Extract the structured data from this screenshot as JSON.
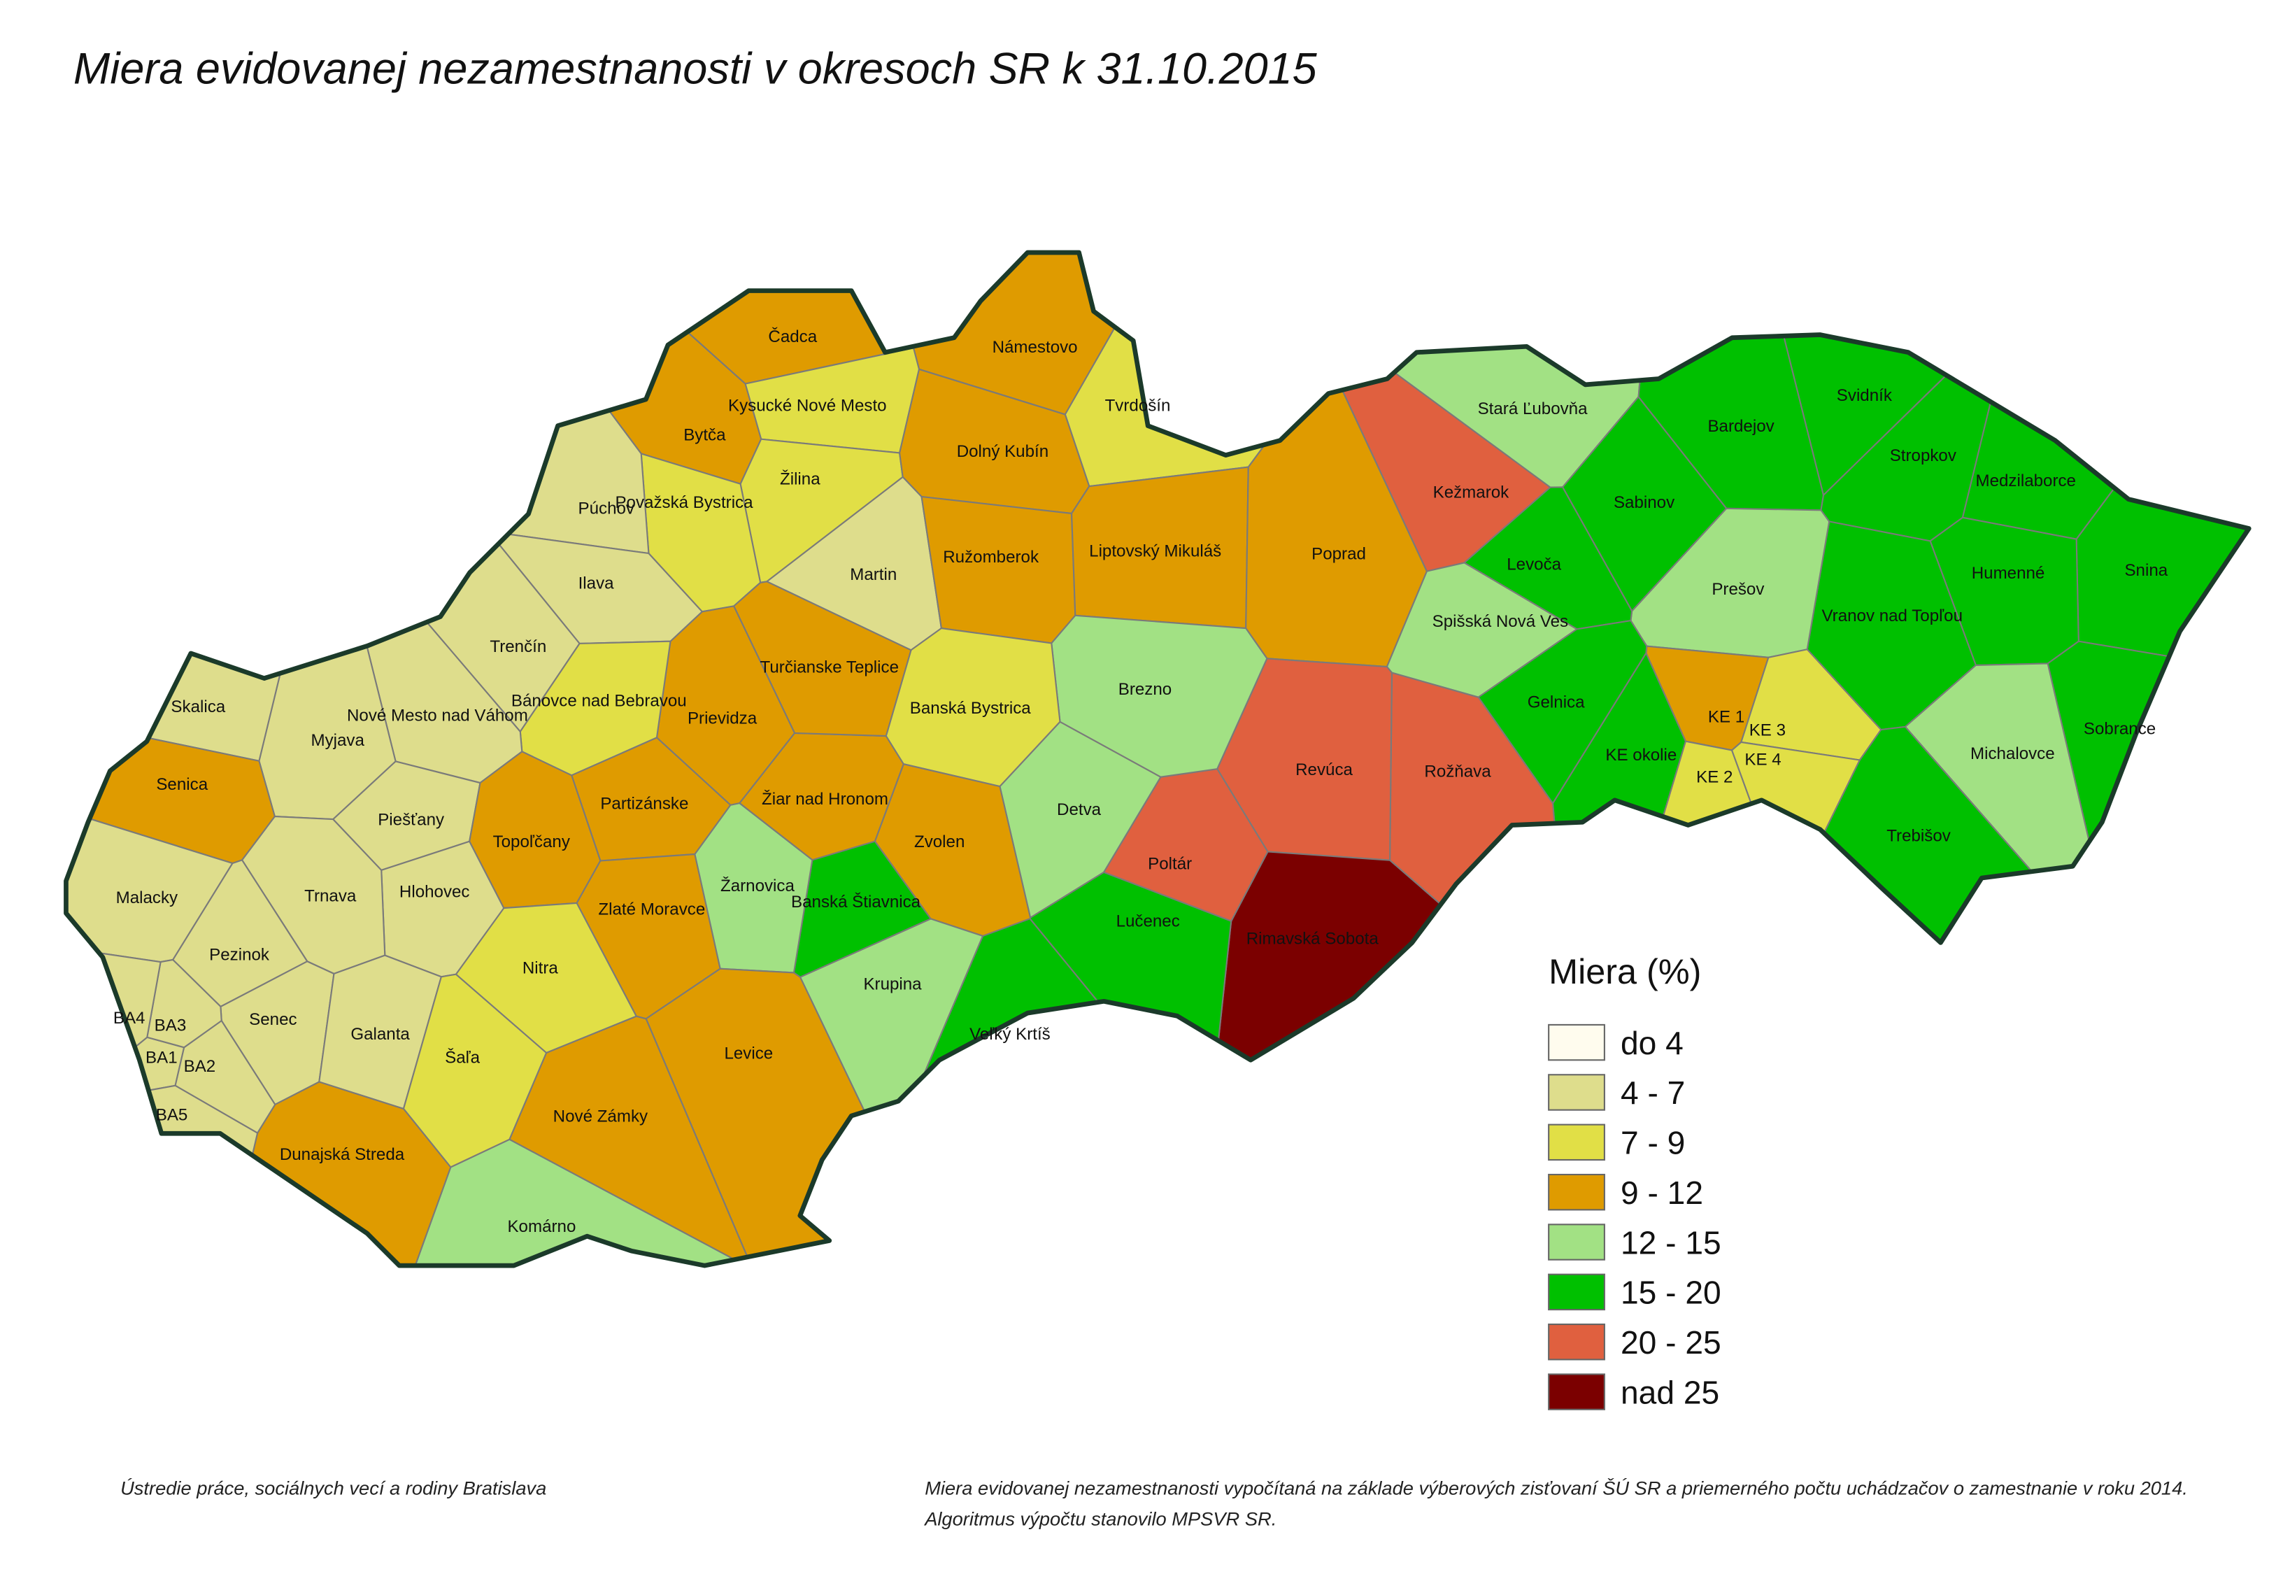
{
  "title": "Miera evidovanej nezamestnanosti v okresoch SR k 31.10.2015",
  "districts": [
    {
      "name": "Čadca",
      "category": "9 - 12"
    },
    {
      "name": "Námestovo",
      "category": "9 - 12"
    },
    {
      "name": "Tvrdošín",
      "category": "7 - 9"
    },
    {
      "name": "Kysucké Nové Mesto",
      "category": "7 - 9"
    },
    {
      "name": "Bytča",
      "category": "9 - 12"
    },
    {
      "name": "Žilina",
      "category": "7 - 9"
    },
    {
      "name": "Dolný Kubín",
      "category": "9 - 12"
    },
    {
      "name": "Považská Bystrica",
      "category": "7 - 9"
    },
    {
      "name": "Púchov",
      "category": "4 - 7"
    },
    {
      "name": "Martin",
      "category": "4 - 7"
    },
    {
      "name": "Ružomberok",
      "category": "9 - 12"
    },
    {
      "name": "Liptovský Mikuláš",
      "category": "9 - 12"
    },
    {
      "name": "Poprad",
      "category": "9 - 12"
    },
    {
      "name": "Kežmarok",
      "category": "20 - 25"
    },
    {
      "name": "Stará Ľubovňa",
      "category": "12 - 15"
    },
    {
      "name": "Sabinov",
      "category": "15 - 20"
    },
    {
      "name": "Bardejov",
      "category": "15 - 20"
    },
    {
      "name": "Svidník",
      "category": "15 - 20"
    },
    {
      "name": "Stropkov",
      "category": "15 - 20"
    },
    {
      "name": "Medzilaborce",
      "category": "15 - 20"
    },
    {
      "name": "Snina",
      "category": "15 - 20"
    },
    {
      "name": "Humenné",
      "category": "15 - 20"
    },
    {
      "name": "Vranov nad Topľou",
      "category": "15 - 20"
    },
    {
      "name": "Prešov",
      "category": "12 - 15"
    },
    {
      "name": "Levoča",
      "category": "15 - 20"
    },
    {
      "name": "Spišská Nová Ves",
      "category": "12 - 15"
    },
    {
      "name": "Gelnica",
      "category": "15 - 20"
    },
    {
      "name": "KE okolie",
      "category": "15 - 20"
    },
    {
      "name": "KE 1",
      "category": "9 - 12"
    },
    {
      "name": "KE 2",
      "category": "7 - 9"
    },
    {
      "name": "KE 3",
      "category": "7 - 9"
    },
    {
      "name": "KE 4",
      "category": "7 - 9"
    },
    {
      "name": "Michalovce",
      "category": "12 - 15"
    },
    {
      "name": "Sobrance",
      "category": "15 - 20"
    },
    {
      "name": "Trebišov",
      "category": "15 - 20"
    },
    {
      "name": "Rožňava",
      "category": "20 - 25"
    },
    {
      "name": "Revúca",
      "category": "20 - 25"
    },
    {
      "name": "Rimavská Sobota",
      "category": "nad 25"
    },
    {
      "name": "Poltár",
      "category": "20 - 25"
    },
    {
      "name": "Lučenec",
      "category": "15 - 20"
    },
    {
      "name": "Veľký Krtíš",
      "category": "15 - 20"
    },
    {
      "name": "Detva",
      "category": "12 - 15"
    },
    {
      "name": "Brezno",
      "category": "12 - 15"
    },
    {
      "name": "Banská Bystrica",
      "category": "7 - 9"
    },
    {
      "name": "Zvolen",
      "category": "9 - 12"
    },
    {
      "name": "Krupina",
      "category": "12 - 15"
    },
    {
      "name": "Banská Štiavnica",
      "category": "15 - 20"
    },
    {
      "name": "Žarnovica",
      "category": "12 - 15"
    },
    {
      "name": "Žiar nad Hronom",
      "category": "9 - 12"
    },
    {
      "name": "Turčianske Teplice",
      "category": "9 - 12"
    },
    {
      "name": "Prievidza",
      "category": "9 - 12"
    },
    {
      "name": "Ilava",
      "category": "4 - 7"
    },
    {
      "name": "Trenčín",
      "category": "4 - 7"
    },
    {
      "name": "Bánovce nad Bebravou",
      "category": "7 - 9"
    },
    {
      "name": "Partizánske",
      "category": "9 - 12"
    },
    {
      "name": "Nové Mesto nad Váhom",
      "category": "4 - 7"
    },
    {
      "name": "Myjava",
      "category": "4 - 7"
    },
    {
      "name": "Skalica",
      "category": "4 - 7"
    },
    {
      "name": "Senica",
      "category": "9 - 12"
    },
    {
      "name": "Piešťany",
      "category": "4 - 7"
    },
    {
      "name": "Topoľčany",
      "category": "9 - 12"
    },
    {
      "name": "Zlaté Moravce",
      "category": "9 - 12"
    },
    {
      "name": "Nitra",
      "category": "7 - 9"
    },
    {
      "name": "Hlohovec",
      "category": "4 - 7"
    },
    {
      "name": "Trnava",
      "category": "4 - 7"
    },
    {
      "name": "Malacky",
      "category": "4 - 7"
    },
    {
      "name": "Pezinok",
      "category": "4 - 7"
    },
    {
      "name": "Senec",
      "category": "4 - 7"
    },
    {
      "name": "Galanta",
      "category": "4 - 7"
    },
    {
      "name": "Šaľa",
      "category": "7 - 9"
    },
    {
      "name": "Levice",
      "category": "9 - 12"
    },
    {
      "name": "Nové Zámky",
      "category": "9 - 12"
    },
    {
      "name": "Komárno",
      "category": "12 - 15"
    },
    {
      "name": "Dunajská Streda",
      "category": "9 - 12"
    },
    {
      "name": "BA1",
      "category": "4 - 7"
    },
    {
      "name": "BA2",
      "category": "4 - 7"
    },
    {
      "name": "BA3",
      "category": "4 - 7"
    },
    {
      "name": "BA4",
      "category": "4 - 7"
    },
    {
      "name": "BA5",
      "category": "4 - 7"
    }
  ],
  "legend": {
    "title": "Miera (%)",
    "items": [
      {
        "label": "do 4",
        "color": "#fffcee"
      },
      {
        "label": "4 - 7",
        "color": "#dedd8c"
      },
      {
        "label": "7 - 9",
        "color": "#e1df46"
      },
      {
        "label": "9 - 12",
        "color": "#df9b00"
      },
      {
        "label": "12 - 15",
        "color": "#a2e184"
      },
      {
        "label": "15 - 20",
        "color": "#00c000"
      },
      {
        "label": "20 - 25",
        "color": "#e0603f"
      },
      {
        "label": "nad 25",
        "color": "#7b0000"
      }
    ]
  },
  "footer": {
    "source": "Ústredie práce, sociálnych vecí a rodiny Bratislava",
    "note": [
      "Miera evidovanej nezamestnanosti vypočítaná na základe výberových zisťovaní ŠÚ SR a priemerného počtu uchádzačov o zamestnanie v roku 2014.",
      "Algoritmus výpočtu stanovilo MPSVR SR."
    ]
  }
}
